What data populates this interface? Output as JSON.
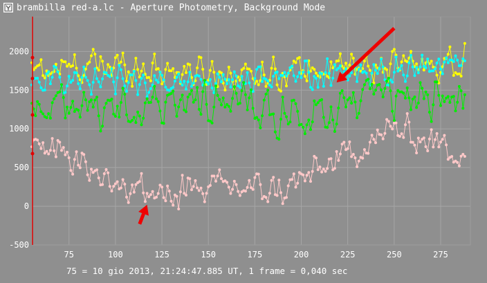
{
  "window": {
    "title": "brambilla red-a.lc - Aperture Photometry, Background Mode",
    "icon": "app-icon"
  },
  "status": {
    "text": "75 = 10 gio 2013, 21:24:47.885 UT, 1 frame = 0,040 sec"
  },
  "colors": {
    "background": "#8f8f8f",
    "grid": "#a6a6a6",
    "axis_text": "#ffffff",
    "cursor_line": "#e00000",
    "arrow": "#ee0000"
  },
  "chart_data": {
    "type": "line",
    "title": "",
    "xlabel": "",
    "ylabel": "",
    "xlim": [
      55,
      291
    ],
    "ylim": [
      -500,
      2450
    ],
    "x_ticks": [
      75,
      100,
      125,
      150,
      175,
      200,
      225,
      250,
      275
    ],
    "y_ticks": [
      -500,
      0,
      500,
      1000,
      1500,
      2000
    ],
    "grid": true,
    "series": [
      {
        "color": "#ffff00",
        "x_start": 55,
        "x_end": 288,
        "base": 1700,
        "amplitude": 230,
        "jitter": 260,
        "trend": [
          [
            55,
            1750
          ],
          [
            100,
            1820
          ],
          [
            160,
            1700
          ],
          [
            220,
            1780
          ],
          [
            288,
            1850
          ]
        ]
      },
      {
        "color": "#00ffff",
        "x_start": 55,
        "x_end": 288,
        "base": 1600,
        "amplitude": 180,
        "jitter": 220,
        "trend": [
          [
            55,
            1650
          ],
          [
            120,
            1600
          ],
          [
            180,
            1650
          ],
          [
            240,
            1750
          ],
          [
            288,
            1800
          ]
        ]
      },
      {
        "color": "#00ee00",
        "x_start": 55,
        "x_end": 288,
        "base": 1350,
        "amplitude": 250,
        "jitter": 330,
        "trend": [
          [
            55,
            1350
          ],
          [
            80,
            1200
          ],
          [
            120,
            1300
          ],
          [
            160,
            1350
          ],
          [
            200,
            1100
          ],
          [
            240,
            1400
          ],
          [
            288,
            1400
          ]
        ]
      },
      {
        "color": "#ffc8c8",
        "x_start": 55,
        "x_end": 288,
        "base": 500,
        "amplitude": 220,
        "jitter": 260,
        "trend": [
          [
            55,
            700
          ],
          [
            70,
            800
          ],
          [
            90,
            400
          ],
          [
            120,
            150
          ],
          [
            160,
            250
          ],
          [
            190,
            200
          ],
          [
            220,
            600
          ],
          [
            250,
            1000
          ],
          [
            288,
            700
          ]
        ]
      }
    ],
    "annotations": [
      {
        "type": "arrow",
        "color": "#ee0000",
        "from": [
          250,
          2300
        ],
        "to": [
          219,
          1600
        ]
      },
      {
        "type": "arrow",
        "color": "#ee0000",
        "from": [
          113,
          -230
        ],
        "to": [
          117,
          20
        ]
      }
    ],
    "cursor_x": 55
  }
}
